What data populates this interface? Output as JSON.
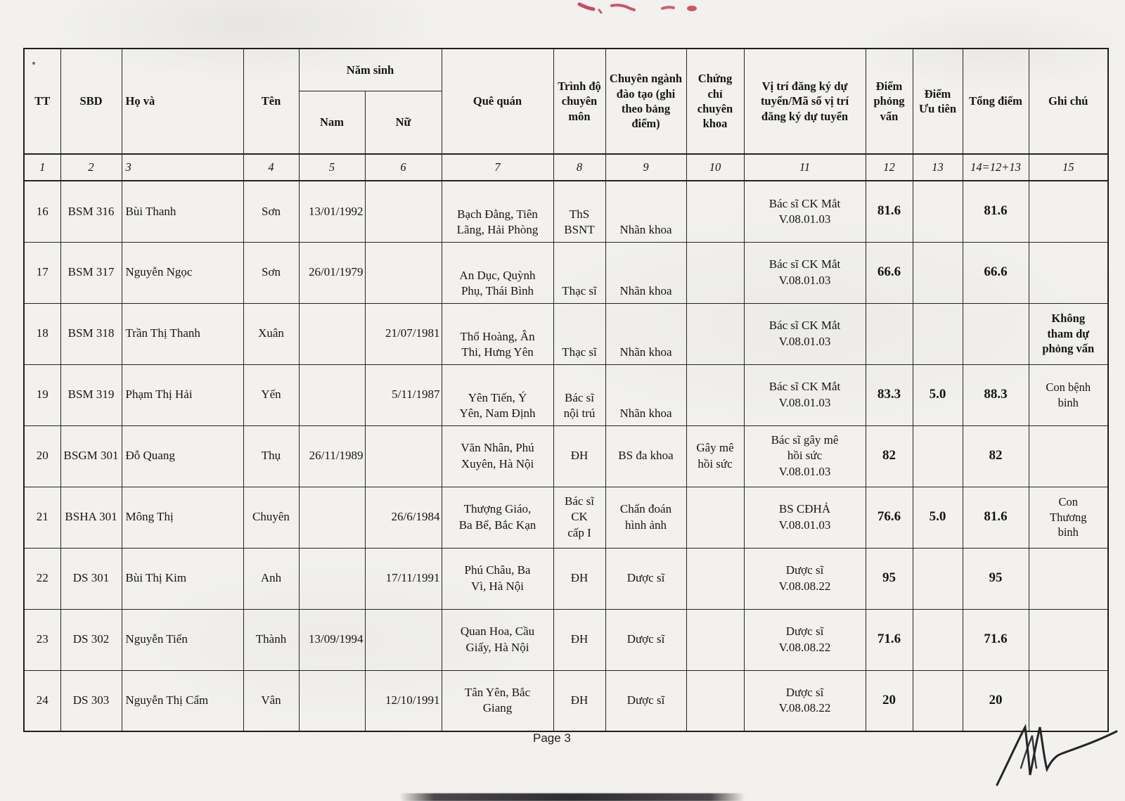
{
  "page": {
    "footer": "Page 3"
  },
  "table": {
    "header": {
      "tt": "TT",
      "sbd": "SBD",
      "ho_va": "Họ và",
      "ten": "Tên",
      "nam_sinh": "Năm sinh",
      "nam": "Nam",
      "nu": "Nữ",
      "que_quan": "Quê quán",
      "trinh_do": "Trình độ chuyên môn",
      "chuyen_nganh": "Chuyên ngành đào tạo (ghi theo bảng điểm)",
      "chung_chi": "Chứng chỉ chuyên khoa",
      "vi_tri": "Vị trí đăng ký dự tuyển/Mã số vị trí đăng ký dự tuyển",
      "diem_pv": "Điểm phỏng vấn",
      "diem_ut": "Điểm Ưu tiên",
      "tong_diem": "Tổng điểm",
      "ghi_chu": "Ghi chú"
    },
    "column_numbers": [
      "1",
      "2",
      "3",
      "4",
      "5",
      "6",
      "7",
      "8",
      "9",
      "10",
      "11",
      "12",
      "13",
      "14=12+13",
      "15"
    ],
    "rows": [
      {
        "tt": "16",
        "sbd": "BSM 316",
        "ho_va": "Bùi Thanh",
        "ten": "Sơn",
        "nam": "13/01/1992",
        "nu": "",
        "que_quan": "Bạch Đằng, Tiên\nLãng, Hải Phòng",
        "trinh_do": "ThS\nBSNT",
        "chuyen_nganh": "Nhãn khoa",
        "chung_chi": "",
        "vi_tri": "Bác sĩ CK Mắt\nV.08.01.03",
        "diem_pv": "81.6",
        "diem_ut": "",
        "tong_diem": "81.6",
        "ghi_chu": ""
      },
      {
        "tt": "17",
        "sbd": "BSM 317",
        "ho_va": "Nguyễn Ngọc",
        "ten": "Sơn",
        "nam": "26/01/1979",
        "nu": "",
        "que_quan": "An Dục, Quỳnh\nPhụ, Thái Bình",
        "trinh_do": "Thạc sĩ",
        "chuyen_nganh": "Nhãn khoa",
        "chung_chi": "",
        "vi_tri": "Bác sĩ CK Mắt\nV.08.01.03",
        "diem_pv": "66.6",
        "diem_ut": "",
        "tong_diem": "66.6",
        "ghi_chu": ""
      },
      {
        "tt": "18",
        "sbd": "BSM 318",
        "ho_va": "Trần Thị Thanh",
        "ten": "Xuân",
        "nam": "",
        "nu": "21/07/1981",
        "que_quan": "Thổ Hoàng, Ân\nThi, Hưng Yên",
        "trinh_do": "Thạc sĩ",
        "chuyen_nganh": "Nhãn khoa",
        "chung_chi": "",
        "vi_tri": "Bác sĩ CK Mắt\nV.08.01.03",
        "diem_pv": "",
        "diem_ut": "",
        "tong_diem": "",
        "ghi_chu": "Không\ntham dự\nphỏng vấn",
        "ghi_chu_bold": true
      },
      {
        "tt": "19",
        "sbd": "BSM 319",
        "ho_va": "Phạm Thị Hải",
        "ten": "Yến",
        "nam": "",
        "nu": "5/11/1987",
        "que_quan": "Yên Tiến, Ý\nYên, Nam Định",
        "trinh_do": "Bác sĩ\nnội trú",
        "chuyen_nganh": "Nhãn khoa",
        "chung_chi": "",
        "vi_tri": "Bác sĩ CK Mắt\nV.08.01.03",
        "diem_pv": "83.3",
        "diem_ut": "5.0",
        "tong_diem": "88.3",
        "ghi_chu": "Con bệnh\nbinh"
      },
      {
        "tt": "20",
        "sbd": "BSGM 301",
        "ho_va": "Đỗ Quang",
        "ten": "Thụ",
        "nam": "26/11/1989",
        "nu": "",
        "que_quan": "Văn Nhân, Phú\nXuyên, Hà Nội",
        "trinh_do": "ĐH",
        "chuyen_nganh": "BS đa khoa",
        "chung_chi": "Gây mê\nhồi sức",
        "vi_tri": "Bác sĩ gây mê\nhồi sức\nV.08.01.03",
        "diem_pv": "82",
        "diem_ut": "",
        "tong_diem": "82",
        "ghi_chu": ""
      },
      {
        "tt": "21",
        "sbd": "BSHA 301",
        "ho_va": "Mông Thị",
        "ten": "Chuyên",
        "nam": "",
        "nu": "26/6/1984",
        "que_quan": "Thượng Giáo,\nBa Bể, Bắc Kạn",
        "trinh_do": "Bác sĩ\nCK\ncấp I",
        "chuyen_nganh": "Chẩn đoán\nhình ảnh",
        "chung_chi": "",
        "vi_tri": "BS CĐHẢ\nV.08.01.03",
        "diem_pv": "76.6",
        "diem_ut": "5.0",
        "tong_diem": "81.6",
        "ghi_chu": "Con\nThương\nbinh"
      },
      {
        "tt": "22",
        "sbd": "DS 301",
        "ho_va": "Bùi Thị Kim",
        "ten": "Anh",
        "nam": "",
        "nu": "17/11/1991",
        "que_quan": "Phú Châu, Ba\nVì, Hà Nội",
        "trinh_do": "ĐH",
        "chuyen_nganh": "Dược sĩ",
        "chung_chi": "",
        "vi_tri": "Dược sĩ\nV.08.08.22",
        "diem_pv": "95",
        "diem_ut": "",
        "tong_diem": "95",
        "ghi_chu": ""
      },
      {
        "tt": "23",
        "sbd": "DS 302",
        "ho_va": "Nguyễn Tiến",
        "ten": "Thành",
        "nam": "13/09/1994",
        "nu": "",
        "que_quan": "Quan Hoa, Cầu\nGiấy, Hà Nội",
        "trinh_do": "ĐH",
        "chuyen_nganh": "Dược sĩ",
        "chung_chi": "",
        "vi_tri": "Dược sĩ\nV.08.08.22",
        "diem_pv": "71.6",
        "diem_ut": "",
        "tong_diem": "71.6",
        "ghi_chu": ""
      },
      {
        "tt": "24",
        "sbd": "DS 303",
        "ho_va": "Nguyễn Thị Cẩm",
        "ten": "Vân",
        "nam": "",
        "nu": "12/10/1991",
        "que_quan": "Tân Yên, Bắc\nGiang",
        "trinh_do": "ĐH",
        "chuyen_nganh": "Dược sĩ",
        "chung_chi": "",
        "vi_tri": "Dược sĩ\nV.08.08.22",
        "diem_pv": "20",
        "diem_ut": "",
        "tong_diem": "20",
        "ghi_chu": ""
      }
    ]
  }
}
